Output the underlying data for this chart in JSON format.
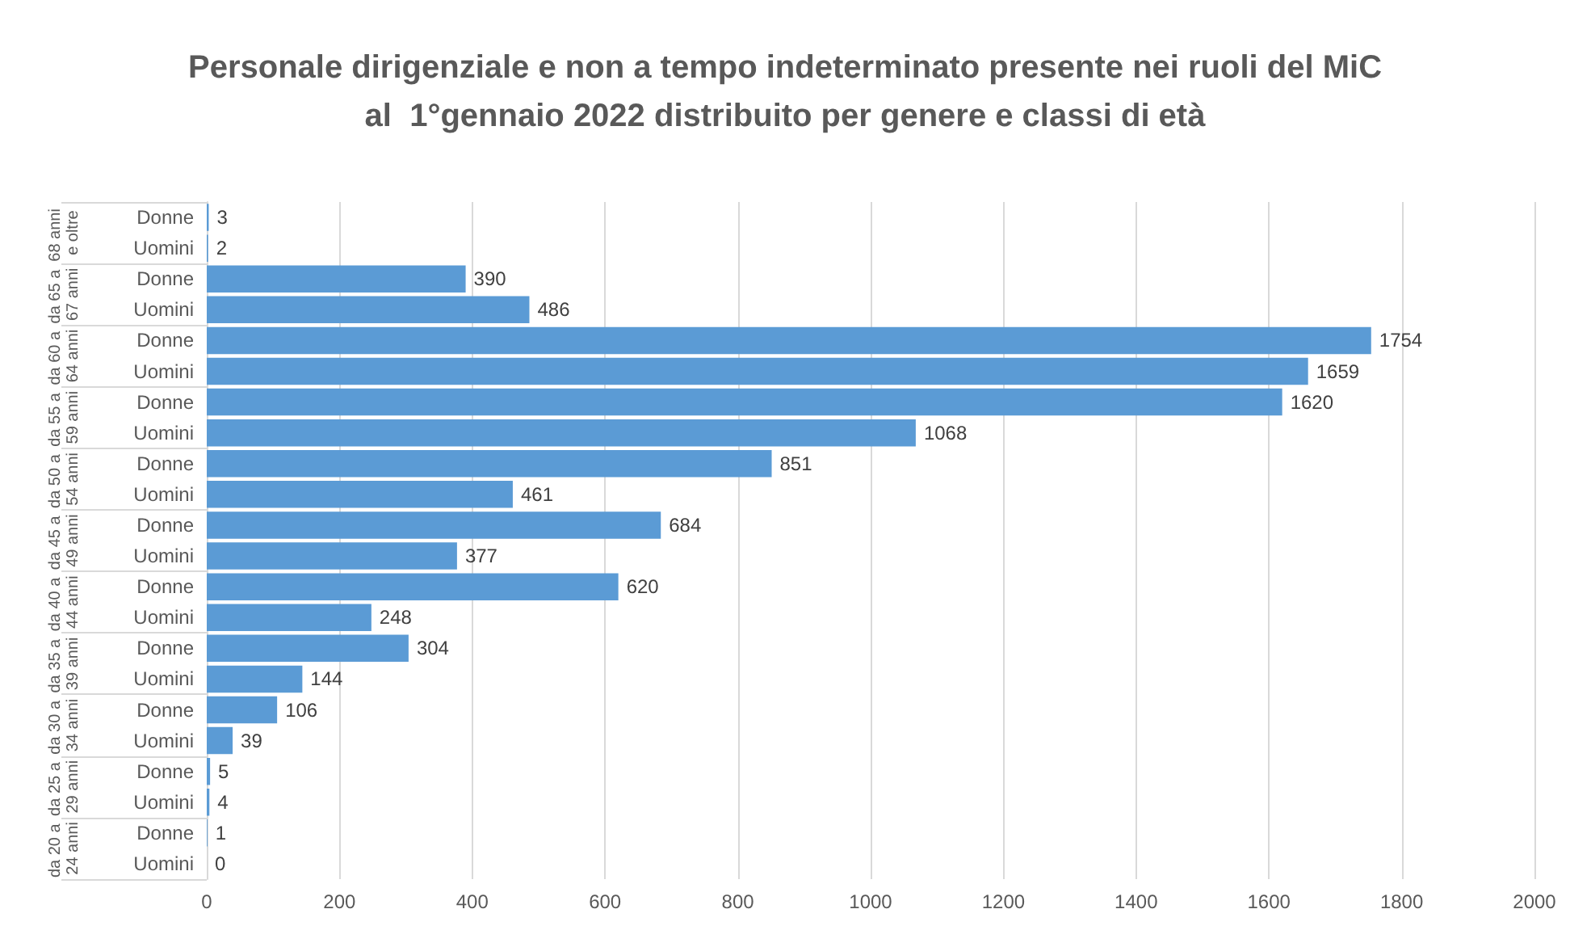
{
  "chart_data": {
    "type": "bar",
    "orientation": "horizontal",
    "title": "Personale dirigenziale e non a tempo indeterminato presente nei ruoli del MiC\nal  1°gennaio 2022 distribuito per genere e classi di età",
    "categories": [
      "Donne",
      "Uomini",
      "Donne",
      "Uomini",
      "Donne",
      "Uomini",
      "Donne",
      "Uomini",
      "Donne",
      "Uomini",
      "Donne",
      "Uomini",
      "Donne",
      "Uomini",
      "Donne",
      "Uomini",
      "Donne",
      "Uomini",
      "Donne",
      "Uomini",
      "Donne",
      "Uomini"
    ],
    "values": [
      3,
      2,
      390,
      486,
      1754,
      1659,
      1620,
      1068,
      851,
      461,
      684,
      377,
      620,
      248,
      304,
      144,
      106,
      39,
      5,
      4,
      1,
      0
    ],
    "color": "#5b9bd5",
    "data_labels": true,
    "annotations": [
      "68 anni e oltre",
      "da 65 a 67 anni",
      "da 60 a 64 anni",
      "da 55 a 59 anni",
      "da 50 a 54 anni",
      "da 45 a 49 anni",
      "da 40 a 44 anni",
      "da 35 a 39 anni",
      "da 30 a 34 anni",
      "da 25 a 29 anni",
      "da 20 a 24 anni"
    ],
    "xlim": [
      0,
      2000
    ],
    "xticks": [
      0,
      200,
      400,
      600,
      800,
      1000,
      1200,
      1400,
      1600,
      1800,
      2000
    ],
    "grid": "x"
  }
}
